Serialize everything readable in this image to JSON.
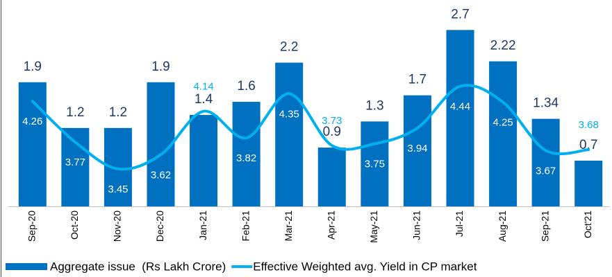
{
  "chart_data": {
    "type": "bar",
    "categories": [
      "Sep-20",
      "Oct-20",
      "Nov-20",
      "Dec-20",
      "Jan-21",
      "Feb-21",
      "Mar-21",
      "Apr-21",
      "May-21",
      "Jun-21",
      "Jul-21",
      "Aug-21",
      "Sep-21",
      "Oct'21"
    ],
    "series": [
      {
        "name": "Aggregate issue  (Rs Lakh Crore)",
        "type": "bar",
        "color": "#0070c0",
        "values": [
          1.9,
          1.2,
          1.2,
          1.9,
          1.4,
          1.6,
          2.2,
          0.9,
          1.3,
          1.7,
          2.7,
          2.22,
          1.34,
          0.7
        ]
      },
      {
        "name": "Effective Weighted avg. Yield in CP market",
        "type": "line",
        "axis": "y2",
        "color": "#00b0f0",
        "values": [
          4.26,
          3.77,
          3.45,
          3.62,
          4.14,
          3.82,
          4.35,
          3.73,
          3.75,
          3.94,
          4.44,
          4.25,
          3.67,
          3.68
        ]
      }
    ],
    "ylim": [
      0,
      3
    ],
    "y2lim": [
      3,
      5.35
    ]
  }
}
